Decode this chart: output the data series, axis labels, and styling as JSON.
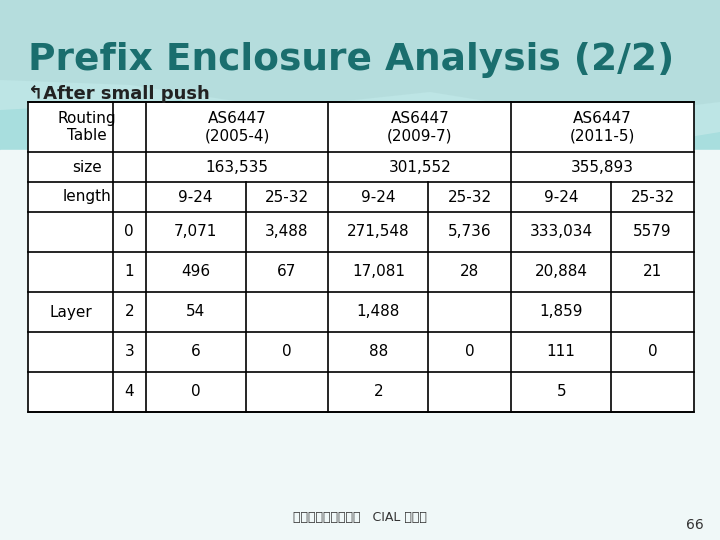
{
  "title": "Prefix Enclosure Analysis (2/2)",
  "subtitle": "↰After small push",
  "title_color": "#1a6e6e",
  "subtitle_color": "#222222",
  "footer": "成功大學資訊工程系   CIAL 實驗室",
  "page_number": "66",
  "bg_top_color": "#a8dede",
  "bg_bottom_color": "#f0f8f8",
  "wave1_color": "#c5e8e8",
  "wave2_color": "#b0d8d8",
  "table_header_row0": [
    "Routing\nTable",
    "AS6447\n(2005-4)",
    "AS6447\n(2009-7)",
    "AS6447\n(2011-5)"
  ],
  "table_size_row": [
    "size",
    "163,535",
    "301,552",
    "355,893"
  ],
  "table_length_row": [
    "length",
    "9-24",
    "25-32",
    "9-24",
    "25-32",
    "9-24",
    "25-32"
  ],
  "table_layer_label": "Layer",
  "table_data": [
    [
      "0",
      "7,071",
      "3,488",
      "271,548",
      "5,736",
      "333,034",
      "5579"
    ],
    [
      "1",
      "496",
      "67",
      "17,081",
      "28",
      "20,884",
      "21"
    ],
    [
      "2",
      "54",
      "",
      "1,488",
      "",
      "1,859",
      ""
    ],
    [
      "3",
      "6",
      "0",
      "88",
      "0",
      "111",
      "0"
    ],
    [
      "4",
      "0",
      "",
      "2",
      "",
      "5",
      ""
    ]
  ]
}
